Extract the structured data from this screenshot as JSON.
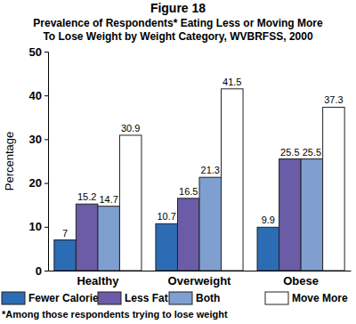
{
  "chart_data": {
    "type": "bar",
    "title": "Figure 18",
    "subtitle": [
      "Prevalence of Respondents* Eating Less or Moving More",
      "To Lose Weight by Weight Category, WVBRFSS, 2000"
    ],
    "y_label": "Percentage",
    "annotations": [
      "*Among those respondents trying to lose weight"
    ],
    "categories": [
      "Healthy",
      "Overweight",
      "Obese"
    ],
    "series": [
      {
        "name": "Fewer Calories",
        "color": "#2c6cb4",
        "values": [
          7,
          10.7,
          9.9
        ]
      },
      {
        "name": "Less Fat",
        "color": "#6a5ca6",
        "values": [
          15.2,
          16.5,
          25.5
        ]
      },
      {
        "name": "Both",
        "color": "#7f9fd0",
        "values": [
          14.7,
          21.3,
          25.5
        ]
      },
      {
        "name": "Move More",
        "color": "#ffffff",
        "values": [
          30.9,
          41.5,
          37.3
        ]
      }
    ],
    "ylim": [
      0,
      50
    ],
    "yticks": [
      0,
      10,
      20,
      30,
      40,
      50
    ],
    "grid": false,
    "legend": "bottom",
    "data_labels": true
  }
}
